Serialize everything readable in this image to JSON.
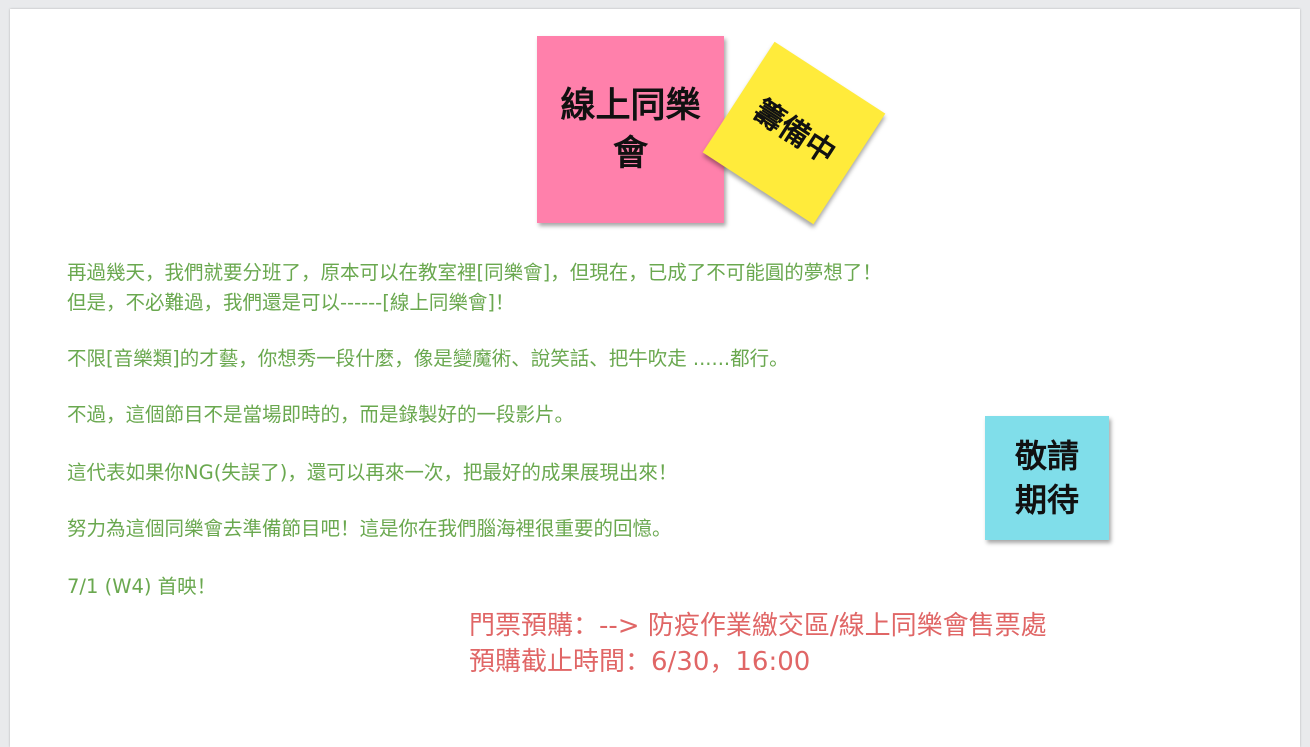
{
  "colors": {
    "background": "#e9eaec",
    "slide": "#ffffff",
    "body_text": "#6aa84f",
    "ticket_text": "#e06666",
    "note_pink": "#ff80ab",
    "note_yellow": "#ffeb3b",
    "note_blue": "#80deea"
  },
  "notes": {
    "pink": {
      "text": "線上同樂會"
    },
    "yellow": {
      "text": "籌備中"
    },
    "blue": {
      "text": "敬請期待"
    }
  },
  "body": {
    "lines": [
      "再過幾天，我們就要分班了，原本可以在教室裡[同樂會]，但現在，已成了不可能圓的夢想了！",
      "但是，不必難過，我們還是可以------[線上同樂會]！",
      "不限[音樂類]的才藝，你想秀一段什麼，像是變魔術、說笑話、把牛吹走 ......都行。",
      "不過，這個節目不是當場即時的，而是錄製好的一段影片。",
      "這代表如果你NG(失誤了)，還可以再來一次，把最好的成果展現出來！",
      "努力為這個同樂會去準備節目吧！這是你在我們腦海裡很重要的回憶。",
      "7/1 (W4) 首映！"
    ]
  },
  "ticket": {
    "lines": [
      "門票預購：--> 防疫作業繳交區/線上同樂會售票處",
      "預購截止時間：6/30，16:00"
    ]
  }
}
